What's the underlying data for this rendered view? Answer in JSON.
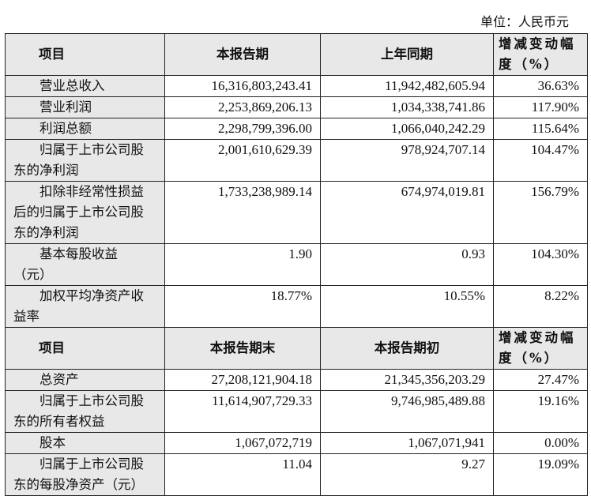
{
  "unit_label": "单位：人民币元",
  "table1": {
    "headers": [
      "项目",
      "本报告期",
      "上年同期",
      "增减变动幅度（%）"
    ],
    "rows": [
      {
        "item": "营业总收入",
        "current": "16,316,803,243.41",
        "prior": "11,942,482,605.94",
        "change": "36.63%"
      },
      {
        "item": "营业利润",
        "current": "2,253,869,206.13",
        "prior": "1,034,338,741.86",
        "change": "117.90%"
      },
      {
        "item": "利润总额",
        "current": "2,298,799,396.00",
        "prior": "1,066,040,242.29",
        "change": "115.64%"
      },
      {
        "item": "归属于上市公司股东的净利润",
        "current": "2,001,610,629.39",
        "prior": "978,924,707.14",
        "change": "104.47%"
      },
      {
        "item": "扣除非经常性损益后的归属于上市公司股东的净利润",
        "current": "1,733,238,989.14",
        "prior": "674,974,019.81",
        "change": "156.79%"
      },
      {
        "item": "基本每股收益（元）",
        "current": "1.90",
        "prior": "0.93",
        "change": "104.30%"
      },
      {
        "item": "加权平均净资产收益率",
        "current": "18.77%",
        "prior": "10.55%",
        "change": "8.22%"
      }
    ]
  },
  "table2": {
    "headers": [
      "项目",
      "本报告期末",
      "本报告期初",
      "增减变动幅度（%）"
    ],
    "rows": [
      {
        "item": "总资产",
        "current": "27,208,121,904.18",
        "prior": "21,345,356,203.29",
        "change": "27.47%"
      },
      {
        "item": "归属于上市公司股东的所有者权益",
        "current": "11,614,907,729.33",
        "prior": "9,746,985,489.88",
        "change": "19.16%"
      },
      {
        "item": "股本",
        "current": "1,067,072,719",
        "prior": "1,067,071,941",
        "change": "0.00%"
      },
      {
        "item": "归属于上市公司股东的每股净资产（元）",
        "current": "11.04",
        "prior": "9.27",
        "change": "19.09%"
      }
    ]
  }
}
